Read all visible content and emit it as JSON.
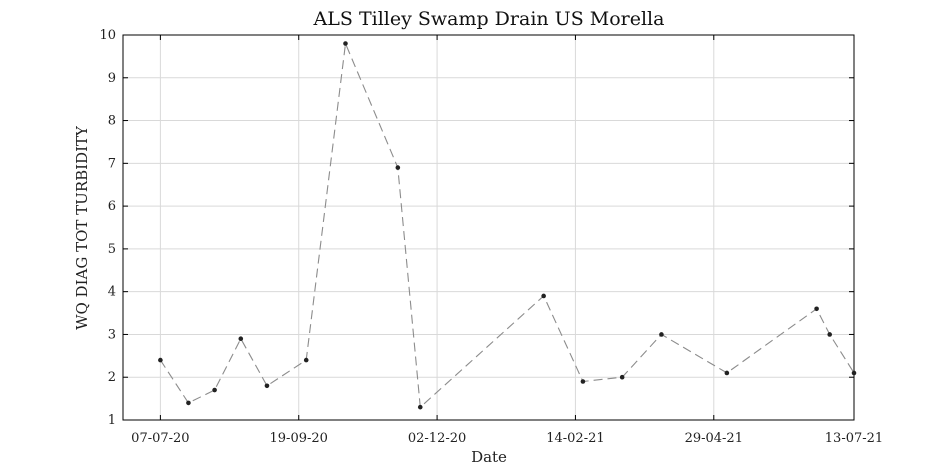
{
  "chart_data": {
    "type": "line",
    "title": "ALS Tilley Swamp Drain US Morella",
    "xlabel": "Date",
    "ylabel": "WQ DIAG TOT TURBIDITY",
    "x_ticks": [
      "07-07-20",
      "19-09-20",
      "02-12-20",
      "14-02-21",
      "29-04-21",
      "13-07-21"
    ],
    "x_tick_dates": [
      "2020-07-07",
      "2020-09-19",
      "2020-12-02",
      "2021-02-14",
      "2021-04-29",
      "2021-07-13"
    ],
    "xlim": [
      "2020-06-17",
      "2021-07-13"
    ],
    "ylim": [
      1,
      10
    ],
    "y_ticks": [
      1,
      2,
      3,
      4,
      5,
      6,
      7,
      8,
      9,
      10
    ],
    "grid": true,
    "line_style": "dashed",
    "colors": {
      "line": "#8c8c8c",
      "marker": "#222222",
      "grid": "#d9d9d9",
      "axis": "#000000"
    },
    "series": [
      {
        "x": [
          "2020-07-07",
          "2020-07-22",
          "2020-08-05",
          "2020-08-19",
          "2020-09-02",
          "2020-09-23",
          "2020-10-14",
          "2020-11-11",
          "2020-11-23",
          "2021-01-28",
          "2021-02-18",
          "2021-03-11",
          "2021-04-01",
          "2021-05-06",
          "2021-06-23",
          "2021-06-30",
          "2021-07-13"
        ],
        "values": [
          2.4,
          1.4,
          1.7,
          2.9,
          1.8,
          2.4,
          9.8,
          6.9,
          1.3,
          3.9,
          1.9,
          2.0,
          3.0,
          2.1,
          3.6,
          3.0,
          2.1
        ]
      }
    ]
  }
}
